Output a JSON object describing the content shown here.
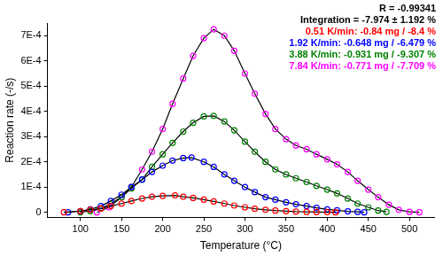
{
  "chart_data": {
    "type": "scatter",
    "x_label": "Temperature (°C)",
    "y_label": "Reaction rate (-/s)",
    "annotations": [
      "R = -0.99341",
      "Integration = -7.974 ± 1.192 %"
    ],
    "xlim": [
      60,
      530
    ],
    "xticks": [
      100,
      150,
      200,
      250,
      300,
      350,
      400,
      450,
      500
    ],
    "ylim": [
      -2e-05,
      0.00075
    ],
    "yticks": [
      0,
      {
        "value": 0.0001,
        "label": "1E-4"
      },
      {
        "value": 0.0002,
        "label": "2E-4"
      },
      {
        "value": 0.0003,
        "label": "3E-4"
      },
      {
        "value": 0.0004,
        "label": "4E-4"
      },
      {
        "value": 0.0005,
        "label": "5E-4"
      },
      {
        "value": 0.0006,
        "label": "6E-4"
      },
      {
        "value": 0.0007,
        "label": "7E-4"
      }
    ],
    "grid": false,
    "legend": "upper right",
    "marker": "circle",
    "line_style": "solid",
    "series": [
      {
        "name": "0.51 K/min: -0.84 mg / -8.4 %",
        "color": "#ff0000",
        "x": [
          80,
          100,
          112,
          125,
          137,
          150,
          162,
          175,
          187,
          200,
          215,
          225,
          237,
          250,
          262,
          275,
          287,
          300,
          312,
          325,
          337,
          350,
          362,
          375,
          387,
          400,
          410
        ],
        "values": [
          0,
          5e-06,
          1e-05,
          1.5e-05,
          2.5e-05,
          3.5e-05,
          4.5e-05,
          5.5e-05,
          6.2e-05,
          6.5e-05,
          6.7e-05,
          6.2e-05,
          5.7e-05,
          5e-05,
          4.3e-05,
          3.5e-05,
          2.7e-05,
          2e-05,
          1.4e-05,
          1e-05,
          7e-06,
          5e-06,
          3e-06,
          2e-06,
          1e-06,
          5e-07,
          0
        ]
      },
      {
        "name": "1.92 K/min: -0.648 mg / -6.479 %",
        "color": "#0000ff",
        "x": [
          85,
          100,
          112,
          125,
          137,
          150,
          162,
          175,
          187,
          200,
          212,
          225,
          235,
          250,
          262,
          275,
          287,
          300,
          312,
          325,
          337,
          350,
          362,
          375,
          387,
          400,
          412,
          425,
          437,
          445
        ],
        "values": [
          0,
          5e-06,
          1.2e-05,
          2.5e-05,
          4.5e-05,
          7e-05,
          0.0001,
          0.00013,
          0.00016,
          0.000185,
          0.000205,
          0.000215,
          0.000217,
          0.0002,
          0.00018,
          0.00015,
          0.000125,
          0.0001,
          8e-05,
          6e-05,
          5e-05,
          4e-05,
          3.2e-05,
          2.5e-05,
          1.8e-05,
          1.2e-05,
          8e-06,
          4e-06,
          2e-06,
          0
        ]
      },
      {
        "name": "3.88 K/min: -0.931 mg / -9.307 %",
        "color": "#008000",
        "x": [
          100,
          112,
          125,
          137,
          150,
          162,
          175,
          187,
          200,
          212,
          225,
          237,
          250,
          262,
          275,
          287,
          300,
          312,
          325,
          337,
          350,
          362,
          375,
          387,
          400,
          412,
          425,
          437,
          450,
          462,
          472
        ],
        "values": [
          0,
          5e-06,
          1.5e-05,
          3.5e-05,
          6e-05,
          9.5e-05,
          0.00013,
          0.00018,
          0.00023,
          0.000275,
          0.00032,
          0.000355,
          0.00038,
          0.000382,
          0.00036,
          0.000325,
          0.00028,
          0.00024,
          0.0002,
          0.00017,
          0.00015,
          0.000135,
          0.00012,
          0.000105,
          9e-05,
          7.5e-05,
          5.5e-05,
          3.5e-05,
          2e-05,
          7e-06,
          2e-06
        ]
      },
      {
        "name": "7.84 K/min: -0.771 mg / -7.709 %",
        "color": "#ff00ff",
        "x": [
          120,
          135,
          150,
          162,
          175,
          187,
          200,
          212,
          225,
          237,
          250,
          262,
          275,
          287,
          300,
          312,
          325,
          337,
          350,
          362,
          375,
          387,
          400,
          412,
          425,
          437,
          450,
          462,
          475,
          487,
          500,
          512
        ],
        "values": [
          0,
          2e-05,
          6e-05,
          0.0001,
          0.00017,
          0.00024,
          0.00033,
          0.00043,
          0.00053,
          0.00062,
          0.00069,
          0.000725,
          0.0007,
          0.00064,
          0.00055,
          0.00047,
          0.00039,
          0.00033,
          0.00029,
          0.000265,
          0.00025,
          0.00023,
          0.00021,
          0.00019,
          0.00016,
          0.000125,
          9e-05,
          6e-05,
          3e-05,
          1e-05,
          2e-06,
          0
        ]
      }
    ]
  }
}
